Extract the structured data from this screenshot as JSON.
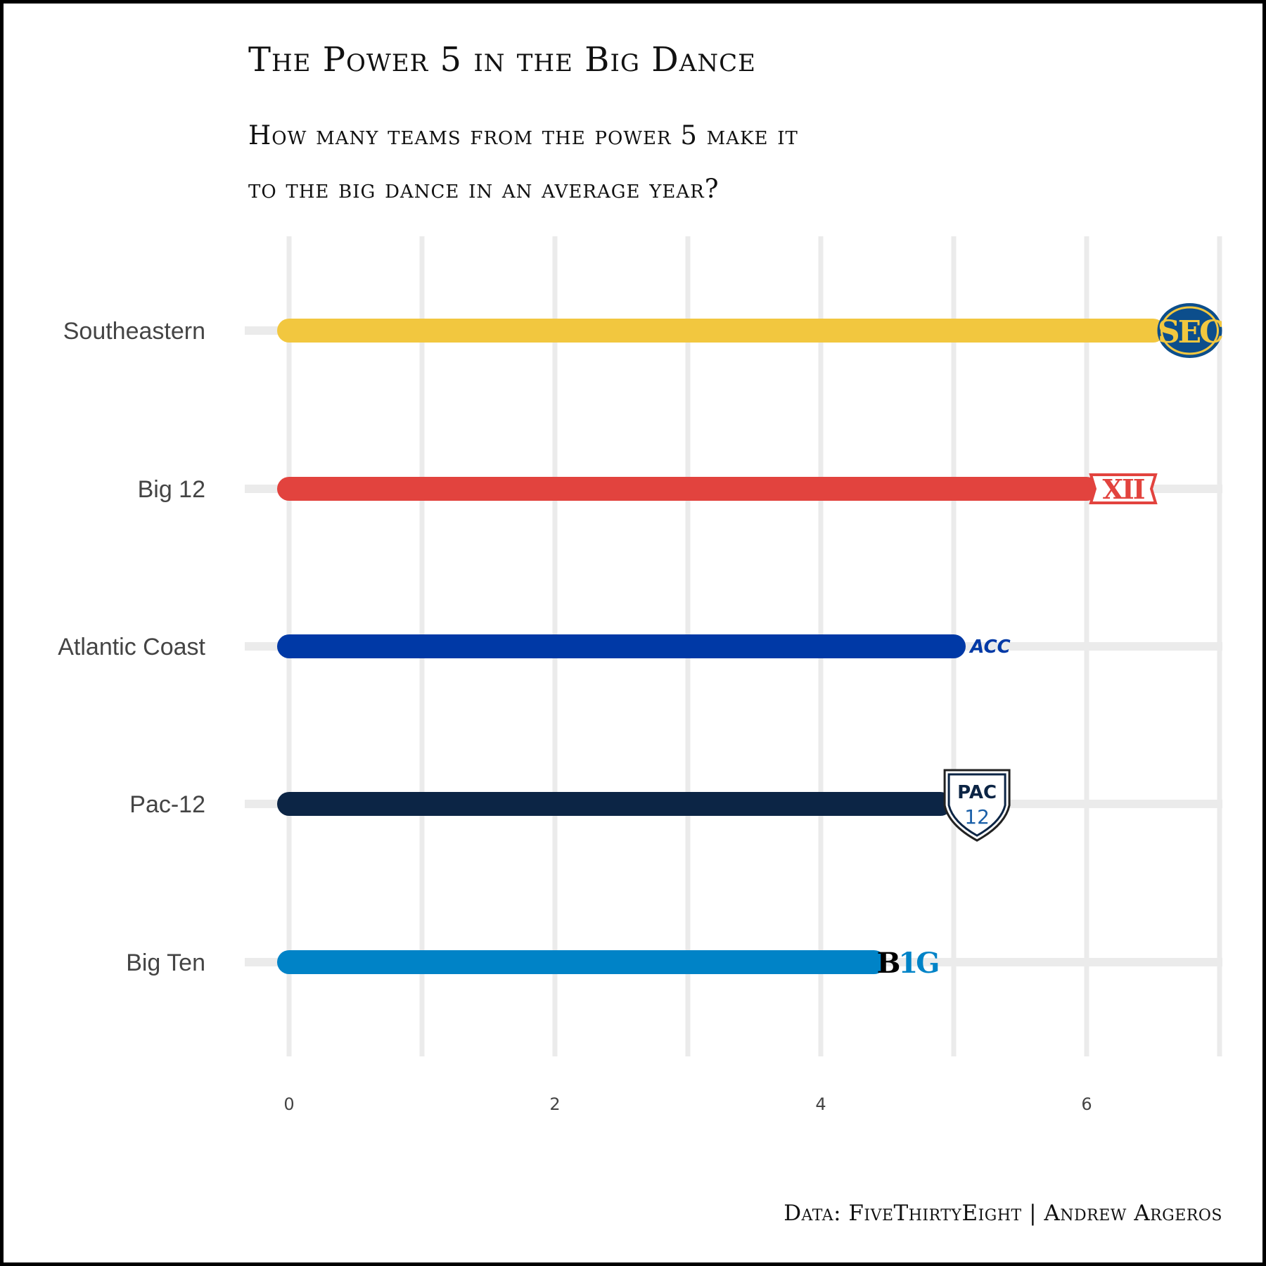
{
  "title": "The Power 5 in the Big Dance",
  "subtitle_lines": [
    "How many teams from the power 5 make it",
    "to the big dance in an average year?"
  ],
  "caption": "Data: FiveThirtyEight | Andrew Argeros",
  "chart_data": {
    "type": "bar",
    "orientation": "horizontal",
    "title": "The Power 5 in the Big Dance",
    "subtitle": "How many teams from the power 5 make it to the big dance in an average year?",
    "caption": "Data: FiveThirtyEight | Andrew Argeros",
    "xlabel": "",
    "ylabel": "",
    "xlim": [
      0,
      7
    ],
    "x_ticks": [
      0,
      2,
      4,
      6
    ],
    "grid": true,
    "legend": "none",
    "categories": [
      "Southeastern",
      "Big 12",
      "Atlantic Coast",
      "Pac-12",
      "Big Ten"
    ],
    "values": [
      6.5,
      6.0,
      5.0,
      4.9,
      4.4
    ],
    "colors": [
      "#F2C73F",
      "#E2433E",
      "#0039A6",
      "#0C2545",
      "#0083C7"
    ],
    "logos": [
      {
        "icon": "sec-logo-icon",
        "text": "SEC"
      },
      {
        "icon": "big12-logo-icon",
        "text": "XII"
      },
      {
        "icon": "acc-logo-icon",
        "text": "ACC"
      },
      {
        "icon": "pac12-logo-icon",
        "text": "PAC 12"
      },
      {
        "icon": "big-ten-logo-icon",
        "text": "B1G"
      }
    ]
  }
}
